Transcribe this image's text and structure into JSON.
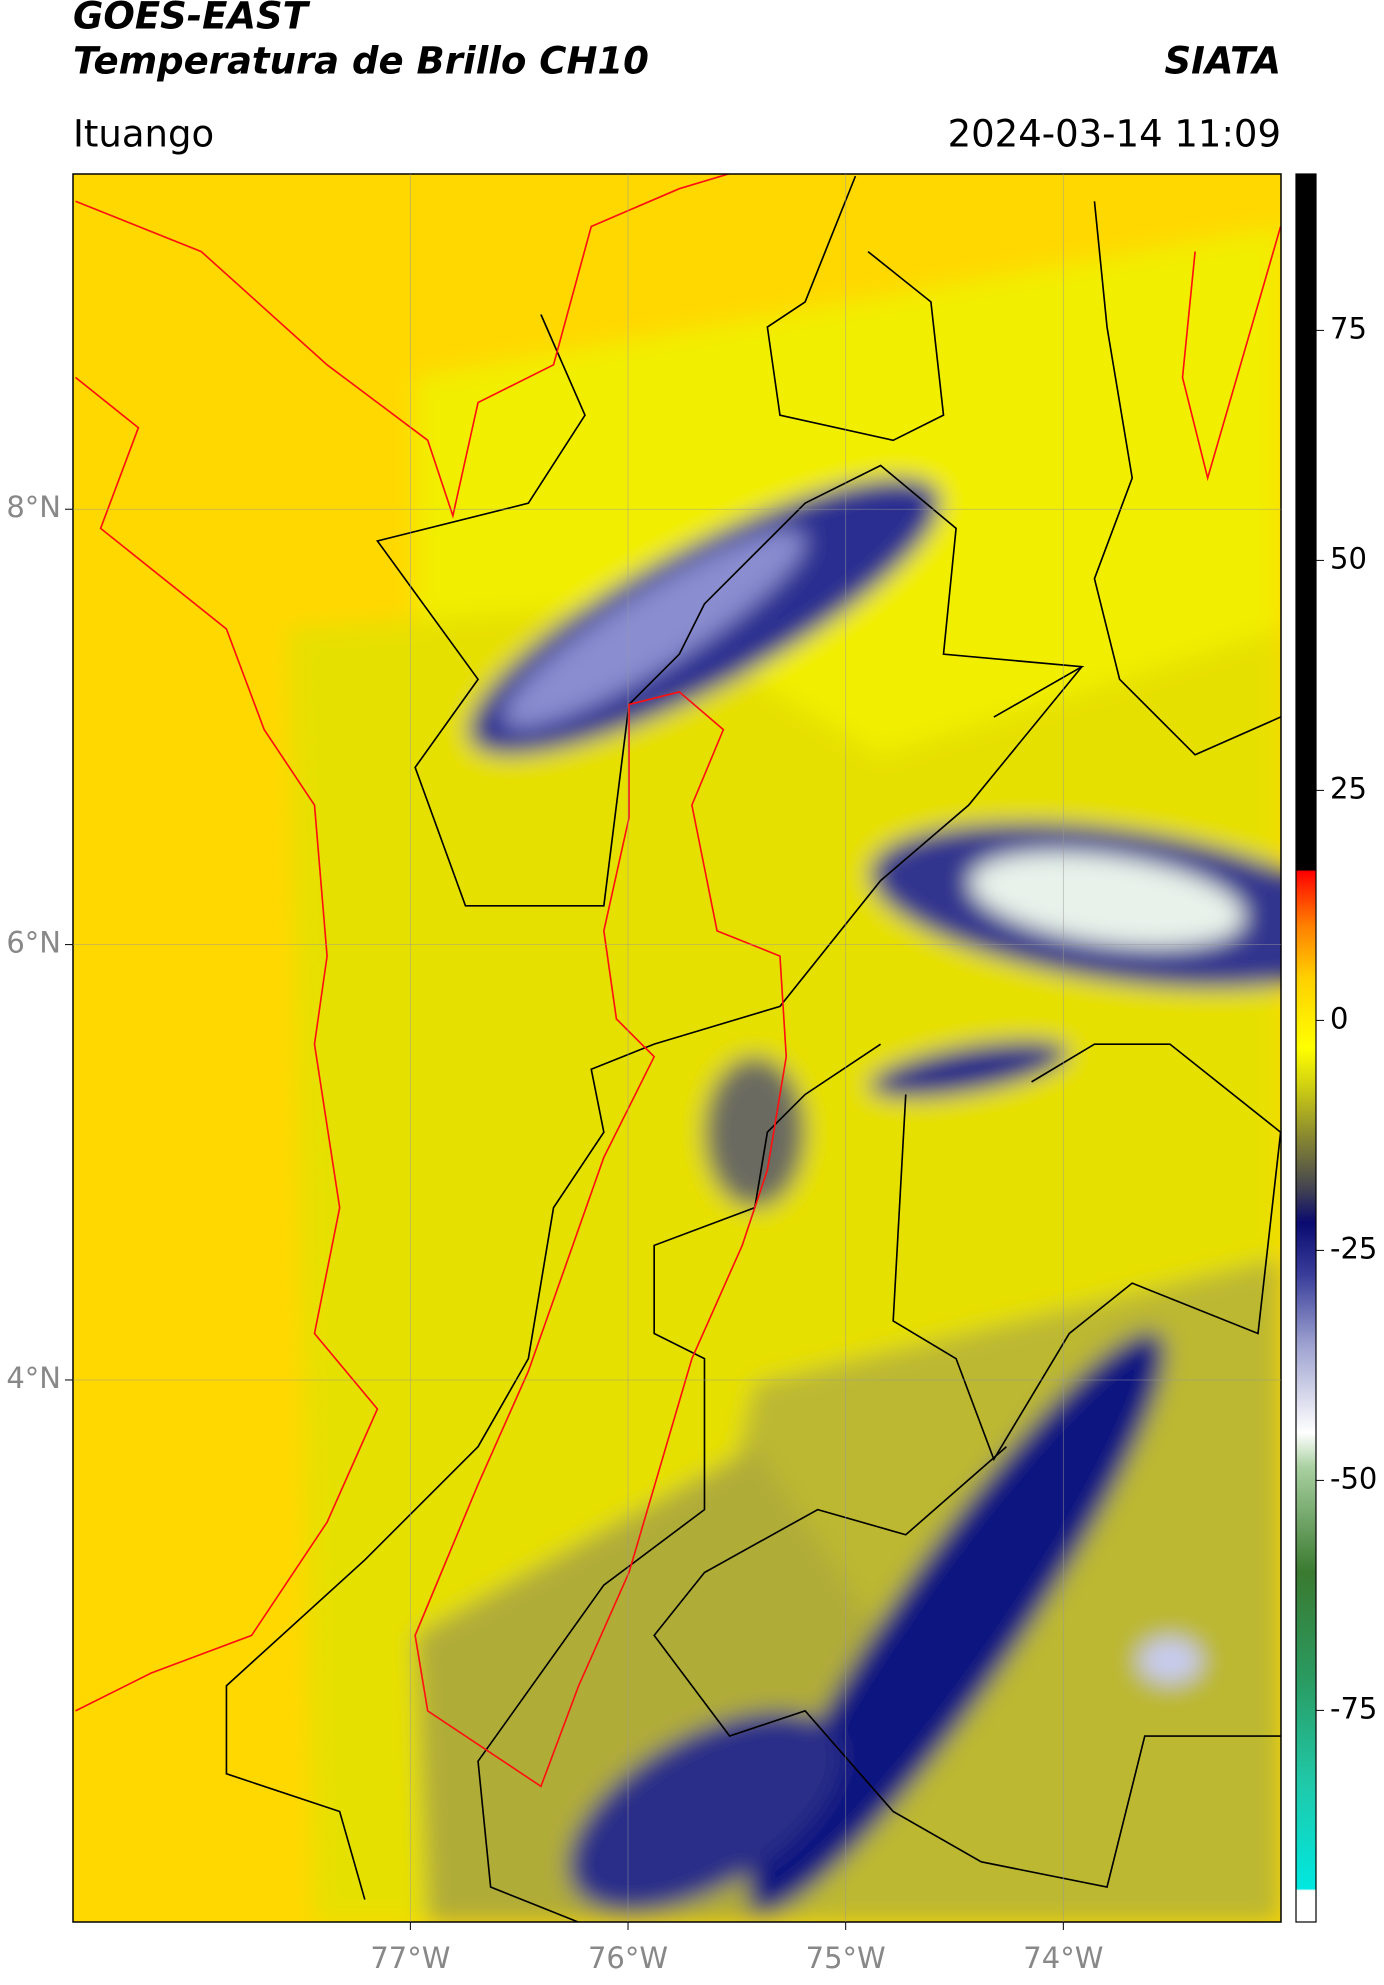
{
  "chart_data": {
    "type": "map",
    "title": "GOES-EAST",
    "subtitle": "Temperatura de Brillo CH10",
    "source": "SIATA",
    "location": "Ituango",
    "datetime": "2024-03-14 11:09",
    "xlim": [
      -78.55,
      -73.0
    ],
    "ylim": [
      1.51,
      9.54
    ],
    "xticks": [
      {
        "value": -77,
        "label": "77°W"
      },
      {
        "value": -76,
        "label": "76°W"
      },
      {
        "value": -75,
        "label": "75°W"
      },
      {
        "value": -74,
        "label": "74°W"
      }
    ],
    "yticks": [
      {
        "value": 8,
        "label": "8°N"
      },
      {
        "value": 6,
        "label": "6°N"
      },
      {
        "value": 4,
        "label": "4°N"
      }
    ],
    "clim": [
      -98,
      92
    ],
    "cticks": [
      75,
      50,
      25,
      0,
      -25,
      -50,
      -75
    ],
    "grid": true
  }
}
